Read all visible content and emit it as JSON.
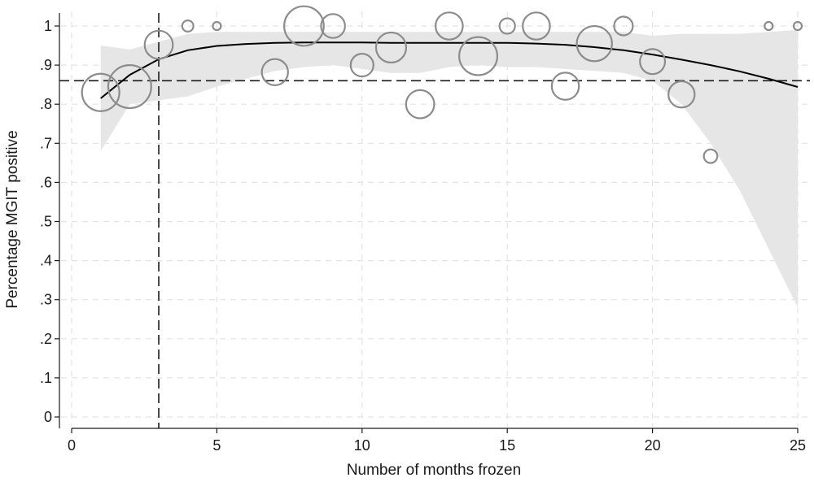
{
  "chart_data": {
    "type": "scatter",
    "title": "",
    "xlabel": "Number of months frozen",
    "ylabel": "Percentage MGIT positive",
    "xlim": [
      0,
      25
    ],
    "ylim": [
      0,
      1
    ],
    "x_ticks": [
      0,
      5,
      10,
      15,
      20,
      25
    ],
    "x_tick_labels": [
      "0",
      "5",
      "10",
      "15",
      "20",
      "25"
    ],
    "y_ticks": [
      0,
      0.1,
      0.2,
      0.3,
      0.4,
      0.5,
      0.6,
      0.7,
      0.8,
      0.9,
      1
    ],
    "y_tick_labels": [
      "0",
      ".1",
      ".2",
      ".3",
      ".4",
      ".5",
      ".6",
      ".7",
      ".8",
      ".9",
      "1"
    ],
    "grid": true,
    "points_weighted": {
      "x": [
        1,
        2,
        3,
        4,
        5,
        7,
        8,
        9,
        10,
        11,
        12,
        13,
        14,
        15,
        16,
        17,
        18,
        19,
        20,
        21,
        22,
        24,
        25
      ],
      "y": [
        0.83,
        0.845,
        0.952,
        1.0,
        1.0,
        0.882,
        1.0,
        1.0,
        0.9,
        0.945,
        0.8,
        1.0,
        0.923,
        1.0,
        1.0,
        0.846,
        0.955,
        1.0,
        0.909,
        0.825,
        0.667,
        1.0,
        1.0
      ],
      "relative_size": [
        25,
        33,
        14,
        2,
        1,
        12,
        28,
        10,
        9,
        16,
        14,
        13,
        26,
        4,
        13,
        13,
        22,
        6,
        11,
        12,
        3,
        1,
        1
      ],
      "color": "#8c8c8c"
    },
    "fitted_line": {
      "x": [
        1,
        2,
        3,
        4,
        5,
        6,
        7,
        8,
        9,
        10,
        11,
        12,
        13,
        14,
        15,
        16,
        17,
        18,
        19,
        20,
        21,
        22,
        23,
        24,
        25
      ],
      "y": [
        0.815,
        0.875,
        0.915,
        0.938,
        0.949,
        0.954,
        0.957,
        0.958,
        0.958,
        0.958,
        0.957,
        0.957,
        0.957,
        0.957,
        0.957,
        0.955,
        0.952,
        0.946,
        0.938,
        0.927,
        0.914,
        0.9,
        0.884,
        0.865,
        0.844
      ],
      "color": "#000000"
    },
    "confidence_band": {
      "x": [
        1,
        2,
        3,
        4,
        5,
        6,
        7,
        8,
        9,
        10,
        11,
        12,
        13,
        14,
        15,
        16,
        17,
        18,
        19,
        20,
        21,
        22,
        23,
        24,
        25
      ],
      "lower": [
        0.68,
        0.8,
        0.81,
        0.82,
        0.845,
        0.865,
        0.885,
        0.895,
        0.9,
        0.89,
        0.88,
        0.88,
        0.895,
        0.9,
        0.895,
        0.895,
        0.89,
        0.885,
        0.88,
        0.86,
        0.8,
        0.7,
        0.58,
        0.43,
        0.28
      ],
      "upper": [
        0.95,
        0.94,
        0.96,
        0.98,
        0.985,
        0.985,
        0.985,
        0.985,
        0.985,
        0.985,
        0.985,
        0.985,
        0.985,
        0.985,
        0.985,
        0.985,
        0.985,
        0.985,
        0.985,
        0.975,
        0.98,
        0.98,
        0.98,
        0.985,
        0.99
      ],
      "color": "#e6e6e6"
    },
    "reference_lines": {
      "horizontal_y": 0.86,
      "vertical_x": 3
    }
  }
}
